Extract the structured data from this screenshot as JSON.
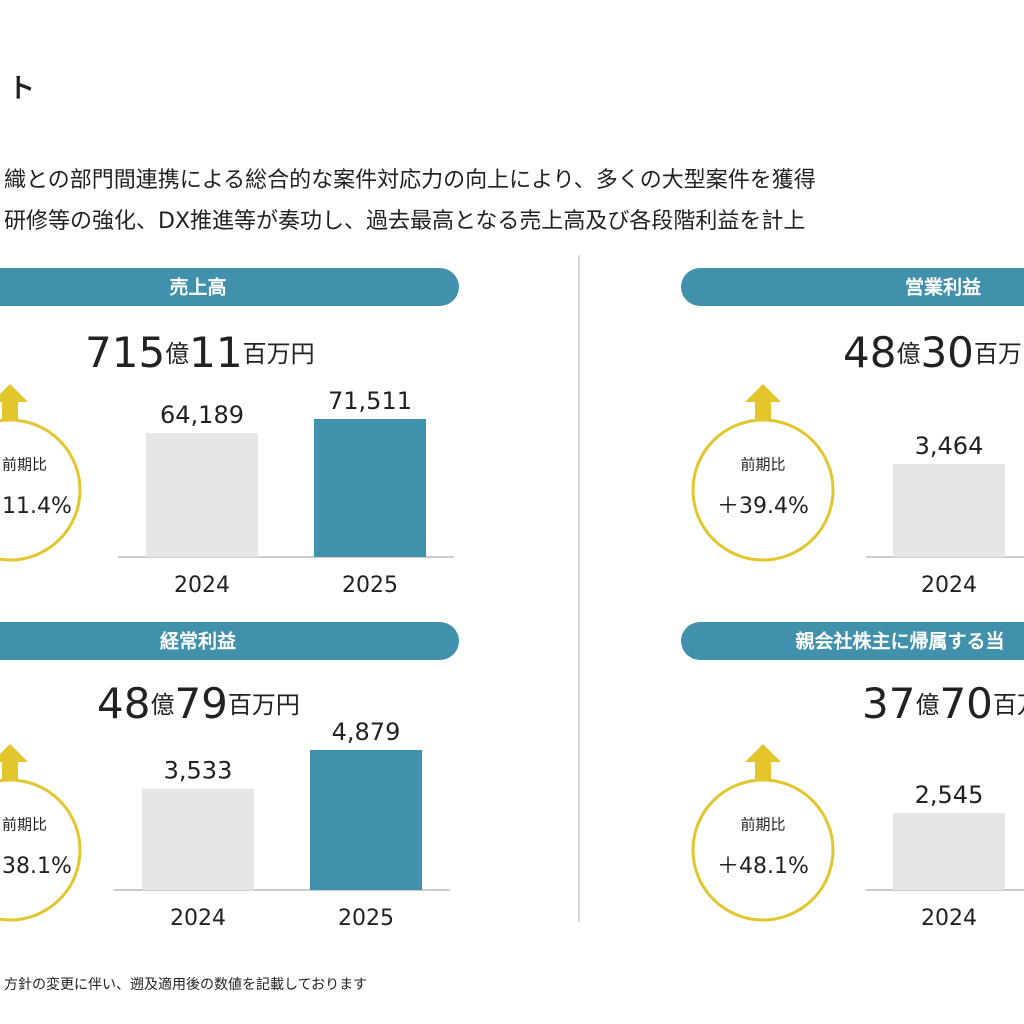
{
  "header": {
    "title": "ト",
    "bullets": [
      "織との部門間連携による総合的な案件対応力の向上により、多くの大型案件を獲得",
      "研修等の強化、DX推進等が奏功し、過去最高となる売上高及び各段階利益を計上"
    ]
  },
  "panels": [
    {
      "title": "売上高",
      "total": [
        "715",
        "億",
        "11",
        "百万円"
      ],
      "yoy_label": "前期比",
      "yoy": "11.4%",
      "categories": [
        "2024",
        "2025"
      ],
      "values": [
        64189,
        71511
      ],
      "value_labels": [
        "64,189",
        "71,511"
      ]
    },
    {
      "title": "営業利益",
      "total": [
        "48",
        "億",
        "30",
        "百万円"
      ],
      "yoy_label": "前期比",
      "yoy": "＋39.4%",
      "categories": [
        "2024"
      ],
      "values": [
        3464
      ],
      "value_labels": [
        "3,464"
      ]
    },
    {
      "title": "経常利益",
      "total": [
        "48",
        "億",
        "79",
        "百万円"
      ],
      "yoy_label": "前期比",
      "yoy": "38.1%",
      "categories": [
        "2024",
        "2025"
      ],
      "values": [
        3533,
        4879
      ],
      "value_labels": [
        "3,533",
        "4,879"
      ]
    },
    {
      "title": "親会社株主に帰属する当",
      "total": [
        "37",
        "億",
        "70",
        "百万円"
      ],
      "yoy_label": "前期比",
      "yoy": "＋48.1%",
      "categories": [
        "2024"
      ],
      "values": [
        2545
      ],
      "value_labels": [
        "2,545"
      ]
    }
  ],
  "footer": {
    "note": "方針の変更に伴い、遡及適用後の数値を記載しております"
  }
}
